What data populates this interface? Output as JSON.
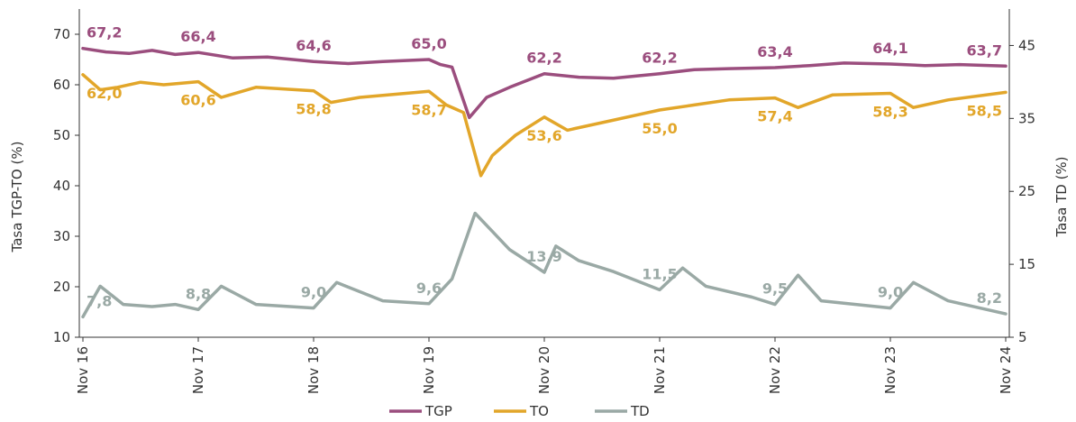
{
  "chart_data": {
    "type": "line",
    "x_ticks": [
      "Nov 16",
      "Nov 17",
      "Nov 18",
      "Nov 19",
      "Nov 20",
      "Nov 21",
      "Nov 22",
      "Nov 23",
      "Nov 24"
    ],
    "ylabel_left": "Tasa TGP-TO (%)",
    "ylabel_right": "Tasa TD (%)",
    "ylim_left": [
      10,
      75
    ],
    "ylim_right": [
      5,
      50
    ],
    "yticks_left": [
      10,
      20,
      30,
      40,
      50,
      60,
      70
    ],
    "yticks_right": [
      5,
      15,
      25,
      35,
      45
    ],
    "grid": false,
    "legend_position": "bottom",
    "series": [
      {
        "name": "TGP",
        "color": "#9b4e7e",
        "axis": "left",
        "x": [
          0,
          0.2,
          0.4,
          0.6,
          0.8,
          1,
          1.3,
          1.6,
          2,
          2.3,
          2.6,
          3,
          3.1,
          3.2,
          3.35,
          3.5,
          3.7,
          4,
          4.3,
          4.6,
          5,
          5.3,
          5.6,
          6,
          6.3,
          6.6,
          7,
          7.3,
          7.6,
          8
        ],
        "values": [
          67.2,
          66.5,
          66.2,
          66.8,
          66.0,
          66.4,
          65.3,
          65.5,
          64.6,
          64.2,
          64.6,
          65.0,
          64.0,
          63.5,
          53.5,
          57.5,
          59.5,
          62.2,
          61.5,
          61.3,
          62.2,
          63.0,
          63.2,
          63.4,
          63.8,
          64.3,
          64.1,
          63.8,
          64.0,
          63.7
        ],
        "labels": [
          {
            "x": 0,
            "value": 67.2,
            "text": "67,2",
            "pos": "above"
          },
          {
            "x": 1,
            "value": 66.4,
            "text": "66,4",
            "pos": "above"
          },
          {
            "x": 2,
            "value": 64.6,
            "text": "64,6",
            "pos": "above"
          },
          {
            "x": 3,
            "value": 65.0,
            "text": "65,0",
            "pos": "above"
          },
          {
            "x": 4,
            "value": 62.2,
            "text": "62,2",
            "pos": "above"
          },
          {
            "x": 5,
            "value": 62.2,
            "text": "62,2",
            "pos": "above"
          },
          {
            "x": 6,
            "value": 63.4,
            "text": "63,4",
            "pos": "above"
          },
          {
            "x": 7,
            "value": 64.1,
            "text": "64,1",
            "pos": "above"
          },
          {
            "x": 8,
            "value": 63.7,
            "text": "63,7",
            "pos": "above"
          }
        ]
      },
      {
        "name": "TO",
        "color": "#e2a62a",
        "axis": "left",
        "x": [
          0,
          0.15,
          0.3,
          0.5,
          0.7,
          1,
          1.2,
          1.5,
          2,
          2.15,
          2.4,
          3,
          3.15,
          3.3,
          3.45,
          3.55,
          3.75,
          4,
          4.2,
          4.5,
          5,
          5.3,
          5.6,
          6,
          6.2,
          6.5,
          7,
          7.2,
          7.5,
          8
        ],
        "values": [
          62.0,
          59.0,
          59.5,
          60.5,
          60.0,
          60.6,
          57.5,
          59.5,
          58.8,
          56.5,
          57.5,
          58.7,
          56.0,
          54.5,
          42.0,
          46.0,
          50.0,
          53.6,
          51.0,
          52.5,
          55.0,
          56.0,
          57.0,
          57.4,
          55.5,
          58.0,
          58.3,
          55.5,
          57.0,
          58.5
        ],
        "labels": [
          {
            "x": 0,
            "value": 62.0,
            "text": "62,0",
            "pos": "below"
          },
          {
            "x": 1,
            "value": 60.6,
            "text": "60,6",
            "pos": "below"
          },
          {
            "x": 2,
            "value": 58.8,
            "text": "58,8",
            "pos": "below"
          },
          {
            "x": 3,
            "value": 58.7,
            "text": "58,7",
            "pos": "below"
          },
          {
            "x": 4,
            "value": 53.6,
            "text": "53,6",
            "pos": "below"
          },
          {
            "x": 5,
            "value": 55.0,
            "text": "55,0",
            "pos": "below"
          },
          {
            "x": 6,
            "value": 57.4,
            "text": "57,4",
            "pos": "below"
          },
          {
            "x": 7,
            "value": 58.3,
            "text": "58,3",
            "pos": "below"
          },
          {
            "x": 8,
            "value": 58.5,
            "text": "58,5",
            "pos": "below"
          }
        ]
      },
      {
        "name": "TD",
        "color": "#9aa9a5",
        "axis": "right",
        "x": [
          0,
          0.15,
          0.35,
          0.6,
          0.8,
          1,
          1.2,
          1.5,
          2,
          2.2,
          2.6,
          3,
          3.2,
          3.4,
          3.55,
          3.7,
          4,
          4.1,
          4.3,
          4.6,
          5,
          5.2,
          5.4,
          5.8,
          6,
          6.2,
          6.4,
          6.7,
          7,
          7.2,
          7.5,
          8
        ],
        "values": [
          7.8,
          12.0,
          9.5,
          9.2,
          9.5,
          8.8,
          12.0,
          9.5,
          9.0,
          12.5,
          10.0,
          9.6,
          13.0,
          22.0,
          19.5,
          17.0,
          13.9,
          17.5,
          15.5,
          14.0,
          11.5,
          14.5,
          12.0,
          10.5,
          9.5,
          13.5,
          10.0,
          9.5,
          9.0,
          12.5,
          10.0,
          8.2
        ],
        "labels": [
          {
            "x": 0,
            "value": 7.8,
            "text": "7,8",
            "pos": "above"
          },
          {
            "x": 1,
            "value": 8.8,
            "text": "8,8",
            "pos": "above"
          },
          {
            "x": 2,
            "value": 9.0,
            "text": "9,0",
            "pos": "above"
          },
          {
            "x": 3,
            "value": 9.6,
            "text": "9,6",
            "pos": "above"
          },
          {
            "x": 4,
            "value": 13.9,
            "text": "13,9",
            "pos": "above"
          },
          {
            "x": 5,
            "value": 11.5,
            "text": "11,5",
            "pos": "above"
          },
          {
            "x": 6,
            "value": 9.5,
            "text": "9,5",
            "pos": "above"
          },
          {
            "x": 7,
            "value": 9.0,
            "text": "9,0",
            "pos": "above"
          },
          {
            "x": 8,
            "value": 8.2,
            "text": "8,2",
            "pos": "above"
          }
        ]
      }
    ]
  }
}
